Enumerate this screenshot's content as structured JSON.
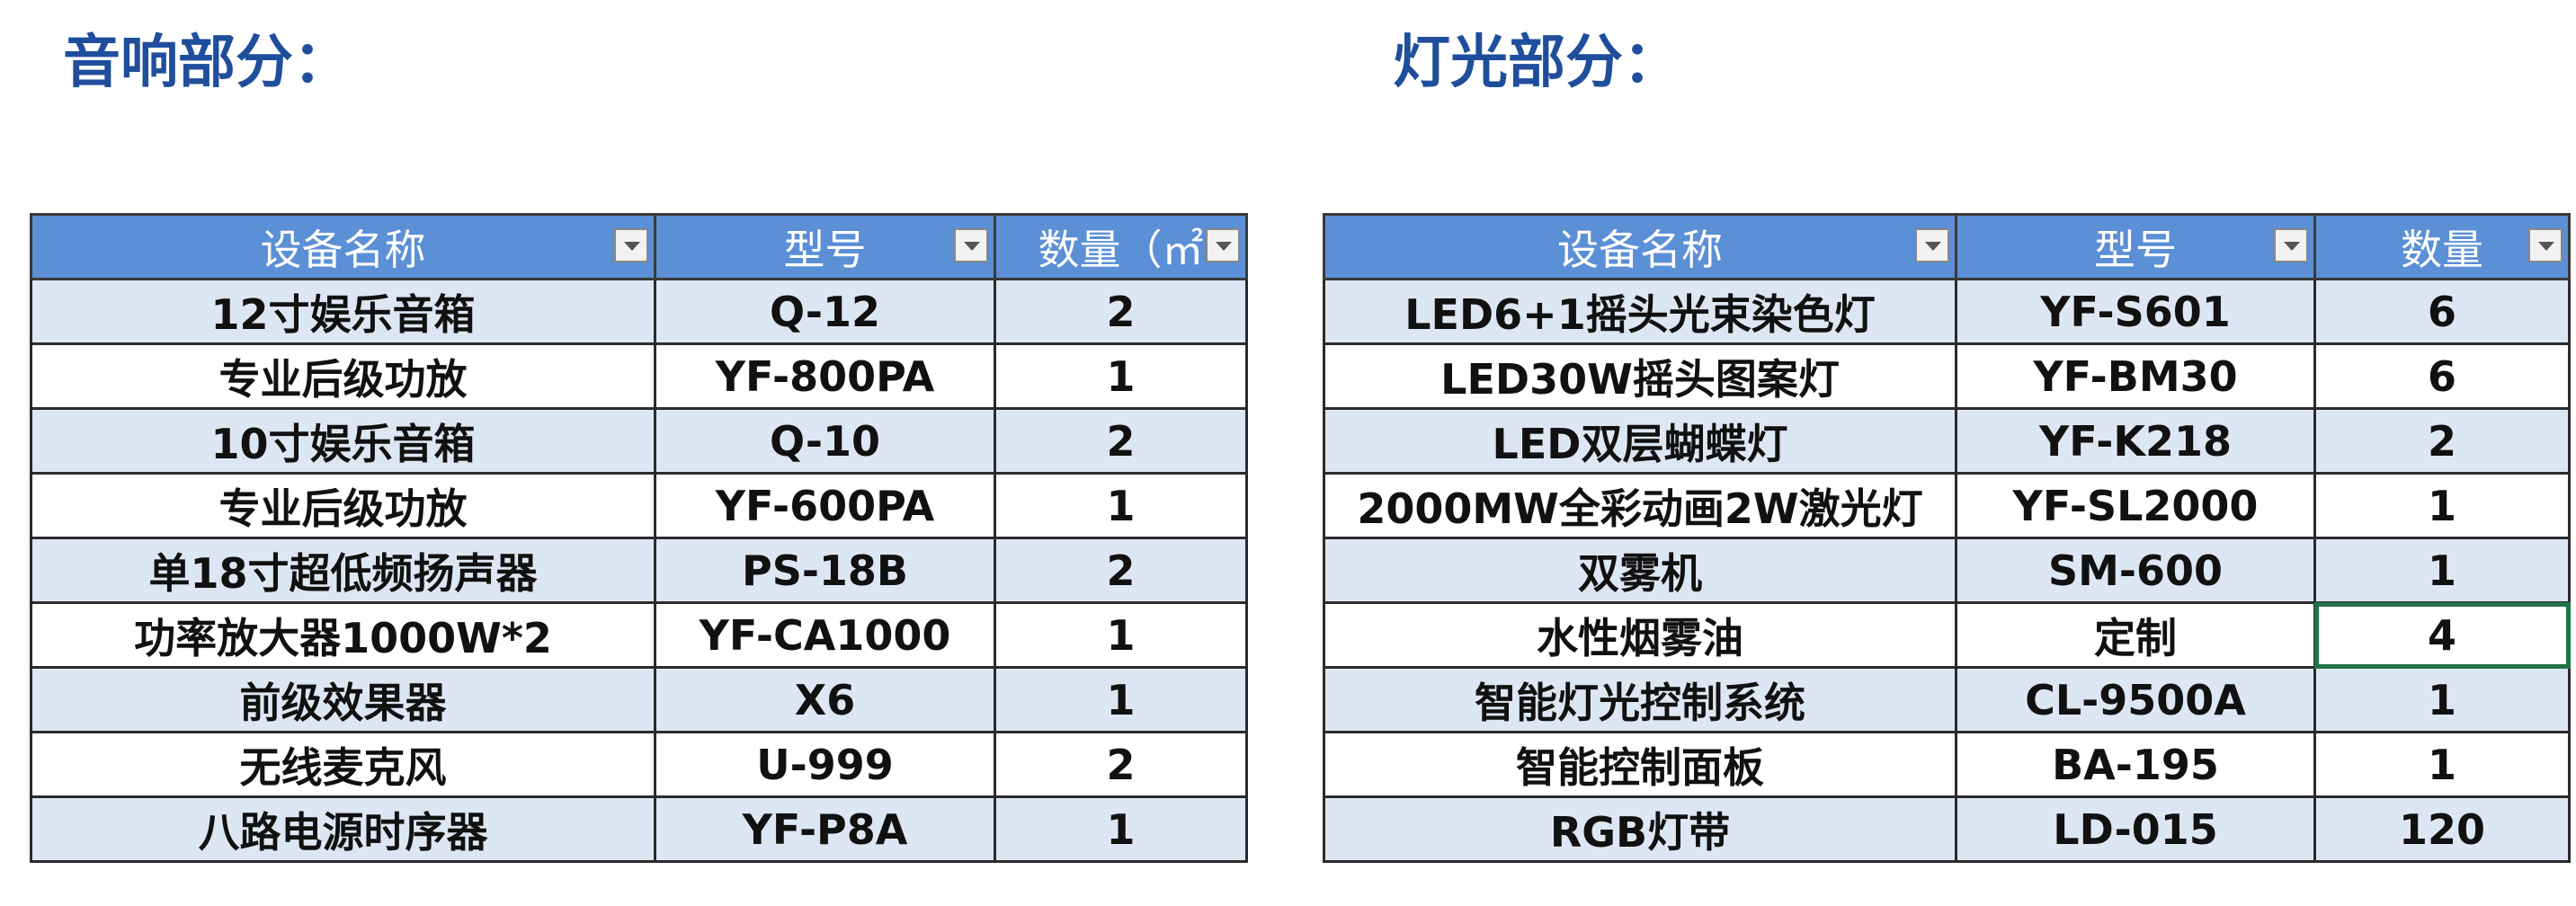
{
  "audio": {
    "title": "音响部分：",
    "headers": [
      "设备名称",
      "型号",
      "数量（㎡"
    ],
    "rows": [
      [
        "12寸娱乐音箱",
        "Q-12",
        "2"
      ],
      [
        "专业后级功放",
        "YF-800PA",
        "1"
      ],
      [
        "10寸娱乐音箱",
        "Q-10",
        "2"
      ],
      [
        "专业后级功放",
        "YF-600PA",
        "1"
      ],
      [
        "单18寸超低频扬声器",
        "PS-18B",
        "2"
      ],
      [
        "功率放大器1000W*2",
        "YF-CA1000",
        "1"
      ],
      [
        "前级效果器",
        "X6",
        "1"
      ],
      [
        "无线麦克风",
        "U-999",
        "2"
      ],
      [
        "八路电源时序器",
        "YF-P8A",
        "1"
      ]
    ]
  },
  "lighting": {
    "title": "灯光部分：",
    "headers": [
      "设备名称",
      "型号",
      "数量"
    ],
    "rows": [
      [
        "LED6+1摇头光束染色灯",
        "YF-S601",
        "6"
      ],
      [
        "LED30W摇头图案灯",
        "YF-BM30",
        "6"
      ],
      [
        "LED双层蝴蝶灯",
        "YF-K218",
        "2"
      ],
      [
        "2000MW全彩动画2W激光灯",
        "YF-SL2000",
        "1"
      ],
      [
        "双雾机",
        "SM-600",
        "1"
      ],
      [
        "水性烟雾油",
        "定制",
        "4"
      ],
      [
        "智能灯光控制系统",
        "CL-9500A",
        "1"
      ],
      [
        "智能控制面板",
        "BA-195",
        "1"
      ],
      [
        "RGB灯带",
        "LD-015",
        "120"
      ]
    ]
  }
}
